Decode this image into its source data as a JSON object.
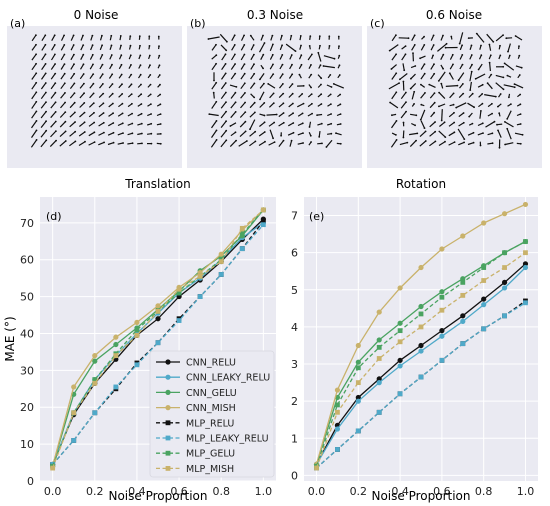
{
  "fields": {
    "titles": [
      "0 Noise",
      "0.3 Noise",
      "0.6 Noise"
    ],
    "letters": [
      "(a)",
      "(b)",
      "(c)"
    ]
  },
  "colors": {
    "panel_bg": "#eaeaf2",
    "grid": "#ffffff",
    "arrow": "#111111"
  },
  "chart_data": [
    {
      "type": "line",
      "letter": "(d)",
      "title": "Translation",
      "xlabel": "Noise Proportion",
      "ylabel": "MAE (°)",
      "xlim": [
        -0.06,
        1.06
      ],
      "ylim": [
        0,
        77
      ],
      "xticks": [
        0.0,
        0.2,
        0.4,
        0.6,
        0.8,
        1.0
      ],
      "xtick_labels": [
        "0.0",
        "0.2",
        "0.4",
        "0.6",
        "0.8",
        "1.0"
      ],
      "yticks": [
        0,
        10,
        20,
        30,
        40,
        50,
        60,
        70
      ],
      "ytick_labels": [
        "0",
        "10",
        "20",
        "30",
        "40",
        "50",
        "60",
        "70"
      ],
      "x": [
        0.0,
        0.1,
        0.2,
        0.3,
        0.4,
        0.5,
        0.6,
        0.7,
        0.8,
        0.9,
        1.0
      ],
      "legend_position": "lower right",
      "grid": true,
      "series": [
        {
          "name": "CNN_RELU",
          "color": "#111111",
          "dashed": false,
          "marker": "circle",
          "values": [
            4.5,
            18.0,
            26.5,
            33.0,
            39.5,
            44.0,
            50.0,
            54.5,
            59.5,
            65.5,
            71.0
          ]
        },
        {
          "name": "CNN_LEAKY_RELU",
          "color": "#4fa9c9",
          "dashed": false,
          "marker": "circle",
          "values": [
            4.5,
            18.5,
            27.5,
            34.0,
            40.0,
            45.5,
            51.0,
            55.0,
            60.0,
            66.0,
            70.0
          ]
        },
        {
          "name": "CNN_GELU",
          "color": "#4aa361",
          "dashed": false,
          "marker": "circle",
          "values": [
            4.0,
            23.5,
            32.5,
            37.0,
            41.5,
            46.5,
            51.5,
            57.0,
            61.0,
            66.5,
            73.5
          ]
        },
        {
          "name": "CNN_MISH",
          "color": "#c9b26b",
          "dashed": false,
          "marker": "circle",
          "values": [
            4.0,
            25.5,
            34.0,
            39.0,
            43.0,
            47.5,
            52.5,
            56.5,
            61.5,
            68.0,
            73.5
          ]
        },
        {
          "name": "MLP_RELU",
          "color": "#111111",
          "dashed": true,
          "marker": "square",
          "values": [
            4.5,
            11.0,
            18.5,
            25.0,
            32.0,
            37.5,
            44.0,
            50.0,
            56.0,
            63.0,
            70.5
          ]
        },
        {
          "name": "MLP_LEAKY_RELU",
          "color": "#4fa9c9",
          "dashed": true,
          "marker": "square",
          "values": [
            4.5,
            11.0,
            18.5,
            25.5,
            31.5,
            37.5,
            43.5,
            50.0,
            56.0,
            63.0,
            69.5
          ]
        },
        {
          "name": "MLP_GELU",
          "color": "#4aa361",
          "dashed": true,
          "marker": "square",
          "values": [
            4.0,
            18.5,
            27.5,
            34.5,
            41.0,
            46.0,
            51.0,
            55.5,
            60.0,
            67.0,
            73.5
          ]
        },
        {
          "name": "MLP_MISH",
          "color": "#c9b26b",
          "dashed": true,
          "marker": "square",
          "values": [
            3.5,
            18.5,
            26.5,
            34.0,
            39.5,
            46.0,
            52.0,
            55.5,
            59.5,
            68.5,
            73.5
          ]
        }
      ]
    },
    {
      "type": "line",
      "letter": "(e)",
      "title": "Rotation",
      "xlabel": "Noise Proportion",
      "ylabel": "",
      "xlim": [
        -0.06,
        1.06
      ],
      "ylim": [
        -0.15,
        7.5
      ],
      "xticks": [
        0.0,
        0.2,
        0.4,
        0.6,
        0.8,
        1.0
      ],
      "xtick_labels": [
        "0.0",
        "0.2",
        "0.4",
        "0.6",
        "0.8",
        "1.0"
      ],
      "yticks": [
        0,
        1,
        2,
        3,
        4,
        5,
        6,
        7
      ],
      "ytick_labels": [
        "0",
        "1",
        "2",
        "3",
        "4",
        "5",
        "6",
        "7"
      ],
      "x": [
        0.0,
        0.1,
        0.2,
        0.3,
        0.4,
        0.5,
        0.6,
        0.7,
        0.8,
        0.9,
        1.0
      ],
      "grid": true,
      "series": [
        {
          "name": "CNN_RELU",
          "color": "#111111",
          "dashed": false,
          "marker": "circle",
          "values": [
            0.3,
            1.35,
            2.1,
            2.6,
            3.1,
            3.5,
            3.9,
            4.3,
            4.75,
            5.2,
            5.7
          ]
        },
        {
          "name": "CNN_LEAKY_RELU",
          "color": "#4fa9c9",
          "dashed": false,
          "marker": "circle",
          "values": [
            0.3,
            1.25,
            2.0,
            2.5,
            2.95,
            3.35,
            3.75,
            4.15,
            4.6,
            5.05,
            5.6
          ]
        },
        {
          "name": "CNN_GELU",
          "color": "#4aa361",
          "dashed": false,
          "marker": "circle",
          "values": [
            0.3,
            2.1,
            3.05,
            3.65,
            4.1,
            4.55,
            4.95,
            5.3,
            5.65,
            6.0,
            6.3
          ]
        },
        {
          "name": "CNN_MISH",
          "color": "#c9b26b",
          "dashed": false,
          "marker": "circle",
          "values": [
            0.3,
            2.3,
            3.5,
            4.4,
            5.05,
            5.6,
            6.1,
            6.45,
            6.8,
            7.05,
            7.3
          ]
        },
        {
          "name": "MLP_RELU",
          "color": "#111111",
          "dashed": true,
          "marker": "square",
          "values": [
            0.2,
            0.7,
            1.2,
            1.7,
            2.2,
            2.65,
            3.1,
            3.55,
            3.95,
            4.3,
            4.7
          ]
        },
        {
          "name": "MLP_LEAKY_RELU",
          "color": "#4fa9c9",
          "dashed": true,
          "marker": "square",
          "values": [
            0.2,
            0.7,
            1.2,
            1.7,
            2.2,
            2.65,
            3.1,
            3.55,
            3.95,
            4.3,
            4.65
          ]
        },
        {
          "name": "MLP_GELU",
          "color": "#4aa361",
          "dashed": true,
          "marker": "square",
          "values": [
            0.25,
            1.9,
            2.9,
            3.45,
            3.9,
            4.35,
            4.8,
            5.2,
            5.6,
            6.0,
            6.3
          ]
        },
        {
          "name": "MLP_MISH",
          "color": "#c9b26b",
          "dashed": true,
          "marker": "square",
          "values": [
            0.2,
            1.7,
            2.5,
            3.15,
            3.6,
            4.0,
            4.45,
            4.85,
            5.25,
            5.6,
            6.0
          ]
        }
      ]
    }
  ]
}
